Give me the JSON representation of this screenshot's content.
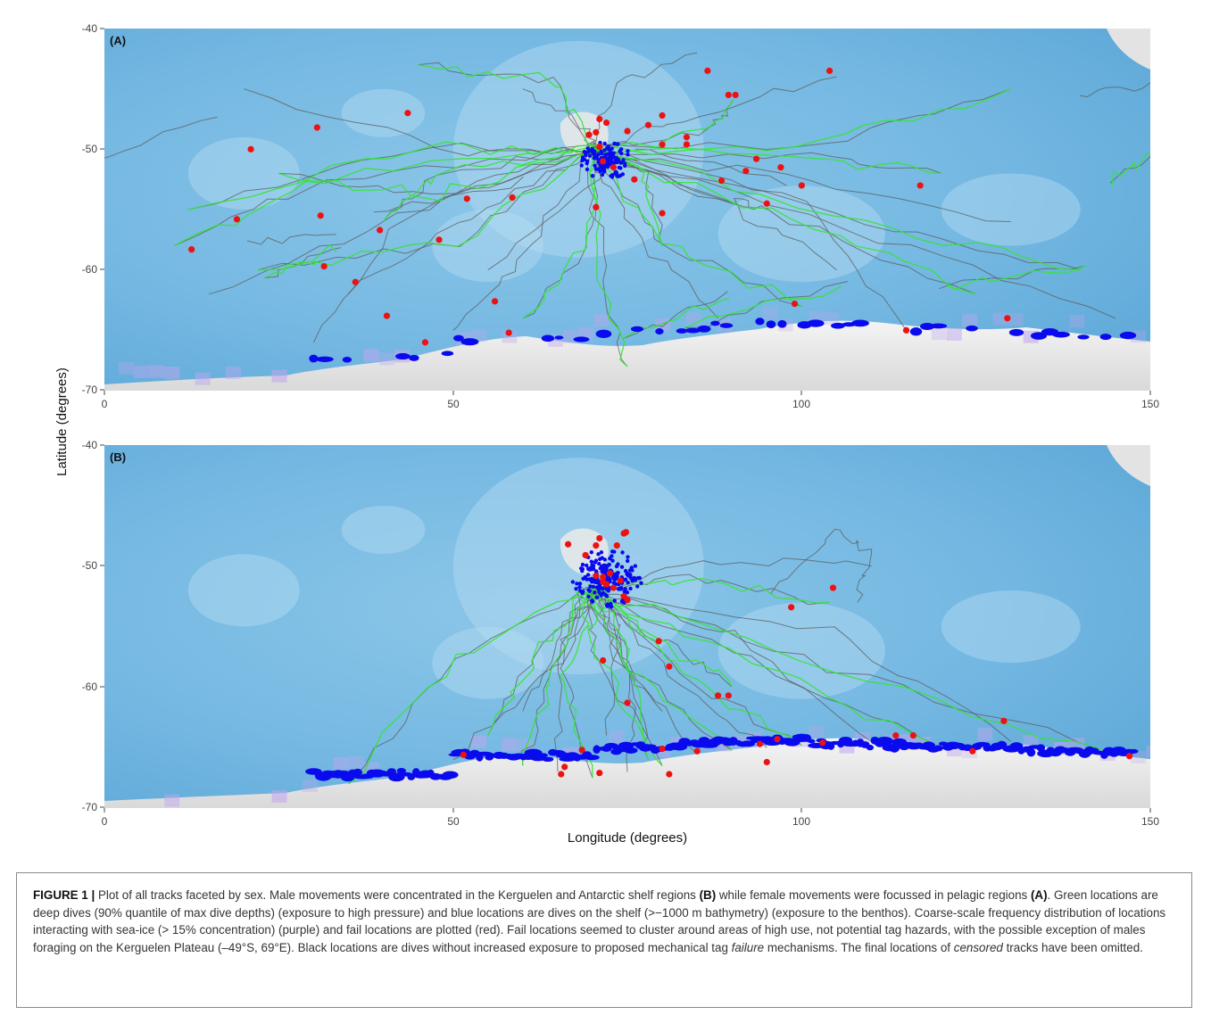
{
  "colors": {
    "ocean": "#74b8e2",
    "ocean_light": "#b6dbf2",
    "land": "#e6e6e6",
    "normal_track": "#5c5c5c",
    "deep_dive": "#33e633",
    "shelf_dive": "#0a0aee",
    "sea_ice": "#bfa6ee",
    "fail": "#ee1111"
  },
  "axes": {
    "x_label": "Longitude (degrees)",
    "y_label": "Latitude (degrees)",
    "x_ticks": [
      "0",
      "50",
      "100",
      "150"
    ],
    "y_ticks": [
      "-40",
      "-50",
      "-60",
      "-70"
    ],
    "x_range": [
      0,
      150
    ],
    "y_range": [
      -70,
      -40
    ]
  },
  "chart_data": [
    {
      "type": "scatter",
      "panel": "(A)",
      "xlabel": "",
      "ylabel": "Latitude (degrees)",
      "xlim": [
        0,
        150
      ],
      "ylim": [
        -70,
        -40
      ],
      "fail_locations": [
        [
          21,
          -50
        ],
        [
          30.5,
          -48.2
        ],
        [
          43.5,
          -47
        ],
        [
          19,
          -55.8
        ],
        [
          31,
          -55.5
        ],
        [
          12.5,
          -58.3
        ],
        [
          31.5,
          -59.7
        ],
        [
          36,
          -61
        ],
        [
          40.5,
          -63.8
        ],
        [
          39.5,
          -56.7
        ],
        [
          48,
          -57.5
        ],
        [
          52,
          -54.1
        ],
        [
          58.5,
          -54
        ],
        [
          56,
          -62.6
        ],
        [
          58,
          -65.2
        ],
        [
          46,
          -66
        ],
        [
          69.5,
          -48.8
        ],
        [
          70.5,
          -48.6
        ],
        [
          71,
          -47.5
        ],
        [
          72,
          -47.8
        ],
        [
          75,
          -48.5
        ],
        [
          78,
          -48
        ],
        [
          80,
          -47.2
        ],
        [
          71,
          -49.8
        ],
        [
          71.5,
          -51
        ],
        [
          73,
          -51.5
        ],
        [
          76,
          -52.5
        ],
        [
          70.5,
          -54.8
        ],
        [
          80,
          -55.3
        ],
        [
          80,
          -49.6
        ],
        [
          83.5,
          -49
        ],
        [
          83.5,
          -49.6
        ],
        [
          86.5,
          -43.5
        ],
        [
          89.5,
          -45.5
        ],
        [
          90.5,
          -45.5
        ],
        [
          88.5,
          -52.6
        ],
        [
          92,
          -51.8
        ],
        [
          93.5,
          -50.8
        ],
        [
          97,
          -51.5
        ],
        [
          95,
          -54.5
        ],
        [
          100,
          -53
        ],
        [
          104,
          -43.5
        ],
        [
          117,
          -53
        ],
        [
          99,
          -62.8
        ],
        [
          115,
          -65
        ],
        [
          129.5,
          -64
        ]
      ]
    },
    {
      "type": "scatter",
      "panel": "(B)",
      "xlabel": "Longitude (degrees)",
      "ylabel": "",
      "xlim": [
        0,
        150
      ],
      "ylim": [
        -70,
        -40
      ],
      "fail_locations": [
        [
          66.5,
          -48.2
        ],
        [
          69,
          -49.1
        ],
        [
          70.5,
          -48.3
        ],
        [
          71,
          -47.7
        ],
        [
          73.5,
          -48.3
        ],
        [
          74.5,
          -47.3
        ],
        [
          74.8,
          -47.2
        ],
        [
          70.5,
          -50.8
        ],
        [
          71.5,
          -50.9
        ],
        [
          72,
          -51.5
        ],
        [
          73,
          -51.8
        ],
        [
          74,
          -51.2
        ],
        [
          74.5,
          -52.5
        ],
        [
          75,
          -52.8
        ],
        [
          71.5,
          -51.3
        ],
        [
          72.5,
          -50.6
        ],
        [
          104.5,
          -51.8
        ],
        [
          98.5,
          -53.4
        ],
        [
          71.5,
          -57.8
        ],
        [
          79.5,
          -56.2
        ],
        [
          81,
          -58.3
        ],
        [
          75,
          -61.3
        ],
        [
          88,
          -60.7
        ],
        [
          89.5,
          -60.7
        ],
        [
          68.5,
          -65.2
        ],
        [
          80,
          -65.1
        ],
        [
          85,
          -65.3
        ],
        [
          81,
          -67.2
        ],
        [
          94,
          -64.7
        ],
        [
          95,
          -66.2
        ],
        [
          96.5,
          -64.3
        ],
        [
          103,
          -64.6
        ],
        [
          113.5,
          -64
        ],
        [
          116,
          -64
        ],
        [
          124.5,
          -65.3
        ],
        [
          129,
          -62.8
        ],
        [
          147,
          -65.7
        ],
        [
          51.5,
          -65.6
        ],
        [
          66,
          -66.6
        ],
        [
          65.5,
          -67.2
        ],
        [
          71,
          -67.1
        ]
      ]
    }
  ],
  "panels": {
    "a_label": "(A)",
    "b_label": "(B)"
  },
  "caption": {
    "lead": "FIGURE 1 |",
    "p1": " Plot of all tracks faceted by sex. Male movements were concentrated in the Kerguelen and Antarctic shelf regions ",
    "b": "(B)",
    "p2": " while female movements were focussed in pelagic regions ",
    "a": "(A)",
    "p3": ". Green locations are deep dives (90% quantile of max dive depths) (exposure to high pressure) and blue locations are dives on the shelf (>−1000 m bathymetry) (exposure to the benthos). Coarse-scale frequency distribution of locations interacting with sea-ice (> 15% concentration) (purple) and fail locations are plotted (red). Fail locations seemed to cluster around areas of high use, not potential tag hazards, with the possible exception of males foraging on the Kerguelen Plateau (–49°S, 69°E). Black locations are dives without increased exposure to proposed mechanical tag ",
    "failure": "failure",
    "p4": " mechanisms. The final locations of ",
    "censored": "censored",
    "p5": " tracks have been omitted."
  }
}
